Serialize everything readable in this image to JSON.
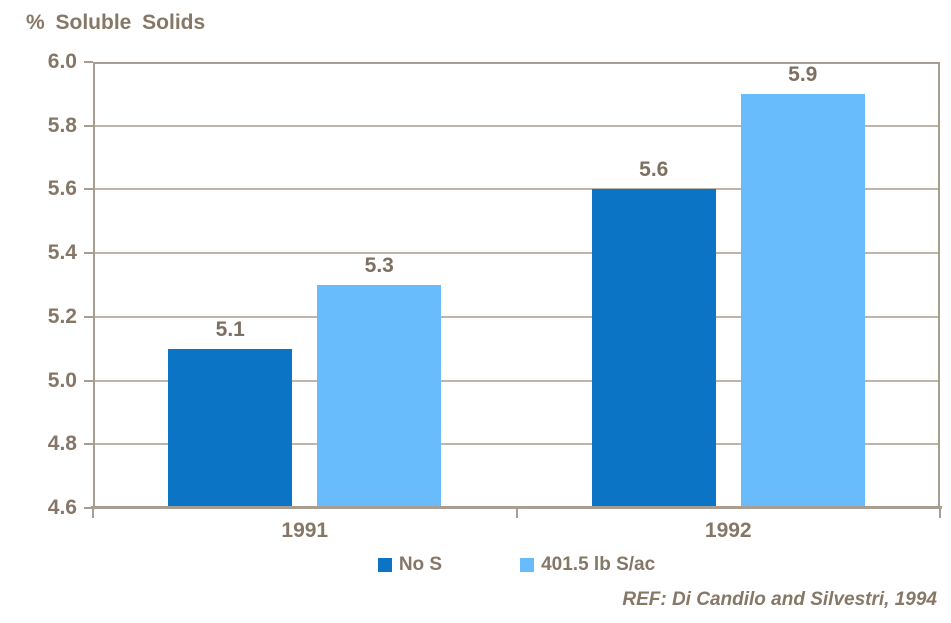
{
  "chart_data": {
    "type": "bar",
    "title": "% Soluble Solids",
    "categories": [
      "1991",
      "1992"
    ],
    "series": [
      {
        "name": "No S",
        "color": "#0b74c4",
        "values": [
          5.1,
          5.6
        ]
      },
      {
        "name": "401.5 lb S/ac",
        "color": "#69bcfb",
        "values": [
          5.3,
          5.9
        ]
      }
    ],
    "data_labels": [
      [
        "5.1",
        "5.6"
      ],
      [
        "5.3",
        "5.9"
      ]
    ],
    "xlabel": "",
    "ylabel": "",
    "ylim": [
      4.6,
      6.0
    ],
    "ytick_step": 0.2,
    "ytick_labels": [
      "6.0",
      "5.8",
      "5.6",
      "5.4",
      "5.2",
      "5.0",
      "4.8",
      "4.6"
    ],
    "grid": true,
    "legend_position": "bottom",
    "annotation": "REF: Di Candilo and Silvestri, 1994"
  },
  "colors": {
    "background": "#ffffff",
    "text": "#857768",
    "title_text": "#867767",
    "value_label_text": "#7d7062",
    "axis_border": "#a79d90",
    "gridline": "#bdb5a9",
    "series_no_s": "#0b74c4",
    "series_s_applied": "#69bcfb"
  }
}
